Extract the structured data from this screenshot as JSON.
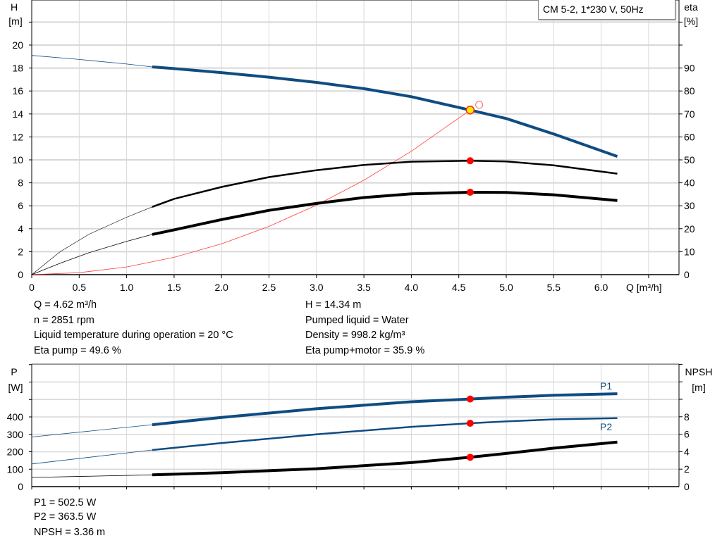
{
  "chart_data": [
    {
      "type": "line",
      "title": "CM 5-2, 1*230 V, 50Hz",
      "xlabel": "Q [m³/h]",
      "ylabel_left": [
        "H",
        "[m]"
      ],
      "ylabel_right": [
        "eta",
        "[%]"
      ],
      "xlim": [
        0,
        6.8
      ],
      "ylim_left": [
        0,
        24
      ],
      "ylim_right": [
        0,
        120
      ],
      "x_ticks": [
        "0",
        "0.5",
        "1.0",
        "1.5",
        "2.0",
        "2.5",
        "3.0",
        "3.5",
        "4.0",
        "4.5",
        "5.0",
        "5.5",
        "6.0"
      ],
      "y_ticks_left": [
        "0",
        "2",
        "4",
        "6",
        "8",
        "10",
        "12",
        "14",
        "16",
        "18",
        "20"
      ],
      "y_ticks_right": [
        "0",
        "10",
        "20",
        "30",
        "40",
        "50",
        "60",
        "70",
        "80",
        "90"
      ],
      "grid": true,
      "recommended_range_start_q": 1.27,
      "series": [
        {
          "axis": "left",
          "color": "#0f4c81",
          "x": [
            0,
            0.5,
            1.0,
            1.27,
            1.5,
            2.0,
            2.5,
            3.0,
            3.5,
            4.0,
            4.62,
            5.0,
            5.5,
            6.17
          ],
          "y": [
            19.1,
            18.75,
            18.35,
            18.1,
            17.95,
            17.6,
            17.2,
            16.75,
            16.2,
            15.5,
            14.34,
            13.6,
            12.25,
            10.3
          ]
        },
        {
          "axis": "right",
          "color": "#000000",
          "x": [
            0,
            0.3,
            0.6,
            1.0,
            1.27,
            1.5,
            2.0,
            2.5,
            3.0,
            3.5,
            4.0,
            4.62,
            5.0,
            5.5,
            6.17
          ],
          "y": [
            0,
            10,
            17.5,
            25,
            29.5,
            33,
            38.2,
            42.5,
            45.5,
            47.8,
            49.2,
            49.6,
            49.3,
            47.6,
            44
          ]
        },
        {
          "axis": "right",
          "color": "#000000",
          "x": [
            0,
            0.3,
            0.6,
            1.0,
            1.27,
            1.5,
            2.0,
            2.5,
            3.0,
            3.5,
            4.0,
            4.62,
            5.0,
            5.5,
            6.17
          ],
          "y": [
            0,
            5,
            9.5,
            14.5,
            17.5,
            19.5,
            24,
            28,
            31,
            33.6,
            35.2,
            35.9,
            35.8,
            34.8,
            32.3
          ]
        },
        {
          "axis": "left",
          "color": "#ff3333",
          "x": [
            0,
            0.5,
            1.0,
            1.5,
            2.0,
            2.5,
            3.0,
            3.5,
            4.0,
            4.62
          ],
          "y": [
            0,
            0.17,
            0.67,
            1.51,
            2.69,
            4.2,
            6.05,
            8.23,
            10.75,
            14.34
          ]
        }
      ],
      "operating_point": {
        "q": 4.62,
        "h": 14.34,
        "eta_pump": 49.6,
        "eta_total": 35.9
      },
      "requested_point": {
        "q": 4.7,
        "h": 14.8
      }
    },
    {
      "type": "line",
      "ylabel_left": [
        "P",
        "[W]"
      ],
      "ylabel_right": [
        "NPSH",
        "[m]"
      ],
      "xlim": [
        0,
        6.8
      ],
      "ylim_left": [
        0,
        700
      ],
      "ylim_right": [
        0,
        14
      ],
      "y_ticks_left": [
        "0",
        "100",
        "200",
        "300",
        "400"
      ],
      "y_ticks_right": [
        "0",
        "2",
        "4",
        "6",
        "8"
      ],
      "grid": true,
      "series": [
        {
          "name": "P1",
          "axis": "left",
          "color": "#0f4c81",
          "x": [
            0,
            1.27,
            2.0,
            3.0,
            4.0,
            4.62,
            5.0,
            5.5,
            6.17
          ],
          "y": [
            285,
            355,
            397,
            447,
            487,
            502.5,
            513,
            524,
            533
          ]
        },
        {
          "name": "P2",
          "axis": "left",
          "color": "#0f4c81",
          "x": [
            0,
            1.27,
            2.0,
            3.0,
            4.0,
            4.62,
            5.0,
            5.5,
            6.17
          ],
          "y": [
            130,
            210,
            250,
            300,
            343,
            363.5,
            374,
            386,
            393
          ]
        },
        {
          "axis": "right",
          "color": "#000000",
          "x": [
            0,
            1.27,
            2.0,
            3.0,
            4.0,
            4.62,
            5.0,
            5.5,
            6.17
          ],
          "y": [
            1.05,
            1.35,
            1.6,
            2.05,
            2.75,
            3.36,
            3.8,
            4.4,
            5.1
          ]
        }
      ],
      "operating_point": {
        "q": 4.62,
        "p1": 502.5,
        "p2": 363.5,
        "npsh": 3.36
      }
    }
  ],
  "info_top": {
    "col1": [
      "Q = 4.62 m³/h",
      "n = 2851 rpm",
      "Liquid temperature during operation = 20 °C",
      "Eta pump = 49.6 %"
    ],
    "col2": [
      "H = 14.34 m",
      "Pumped liquid = Water",
      "Density = 998.2 kg/m³",
      "Eta pump+motor = 35.9 %"
    ]
  },
  "info_bottom": [
    "P1 = 502.5 W",
    "P2 = 363.5 W",
    "NPSH = 3.36 m"
  ]
}
